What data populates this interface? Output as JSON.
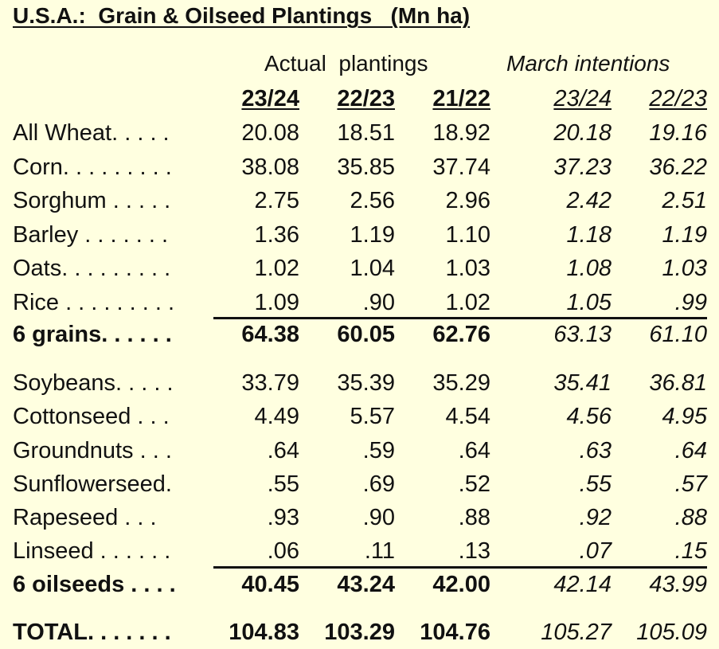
{
  "title": "U.S.A.:  Grain & Oilseed Plantings   (Mn ha)",
  "groups": {
    "actual": "Actual  plantings",
    "march": "March intentions"
  },
  "columns": [
    "23/24",
    "22/23",
    "21/22",
    "23/24",
    "22/23"
  ],
  "rows": [
    {
      "label": "All Wheat. . . . .",
      "values": [
        "20.08",
        "18.51",
        "18.92",
        "20.18",
        "19.16"
      ]
    },
    {
      "label": "Corn. . . . . . . . .",
      "values": [
        "38.08",
        "35.85",
        "37.74",
        "37.23",
        "36.22"
      ]
    },
    {
      "label": "Sorghum . . . . .",
      "values": [
        "2.75",
        "2.56",
        "2.96",
        "2.42",
        "2.51"
      ]
    },
    {
      "label": "Barley . . . . . . .",
      "values": [
        "1.36",
        "1.19",
        "1.10",
        "1.18",
        "1.19"
      ]
    },
    {
      "label": "Oats. . . . . . . . .",
      "values": [
        "1.02",
        "1.04",
        "1.03",
        "1.08",
        "1.03"
      ]
    },
    {
      "label": "Rice . . . . . . . . .",
      "values": [
        "1.09",
        ".90",
        "1.02",
        "1.05",
        ".99"
      ]
    },
    {
      "label": "6 grains. . . . . .",
      "values": [
        "64.38",
        "60.05",
        "62.76",
        "63.13",
        "61.10"
      ],
      "bold": true
    },
    {
      "label": "Soybeans. . . . .",
      "values": [
        "33.79",
        "35.39",
        "35.29",
        "35.41",
        "36.81"
      ]
    },
    {
      "label": "Cottonseed . . .",
      "values": [
        "4.49",
        "5.57",
        "4.54",
        "4.56",
        "4.95"
      ]
    },
    {
      "label": "Groundnuts . . .",
      "values": [
        ".64",
        ".59",
        ".64",
        ".63",
        ".64"
      ]
    },
    {
      "label": "Sunflowerseed.",
      "values": [
        ".55",
        ".69",
        ".52",
        ".55",
        ".57"
      ]
    },
    {
      "label": "Rapeseed . . .",
      "values": [
        ".93",
        ".90",
        ".88",
        ".92",
        ".88"
      ]
    },
    {
      "label": "Linseed . . . . . .",
      "values": [
        ".06",
        ".11",
        ".13",
        ".07",
        ".15"
      ]
    },
    {
      "label": "6 oilseeds . . . .",
      "values": [
        "40.45",
        "43.24",
        "42.00",
        "42.14",
        "43.99"
      ],
      "bold": true
    },
    {
      "label": "TOTAL. . . . . . .",
      "values": [
        "104.83",
        "103.29",
        "104.76",
        "105.27",
        "105.09"
      ],
      "bold": true
    }
  ]
}
